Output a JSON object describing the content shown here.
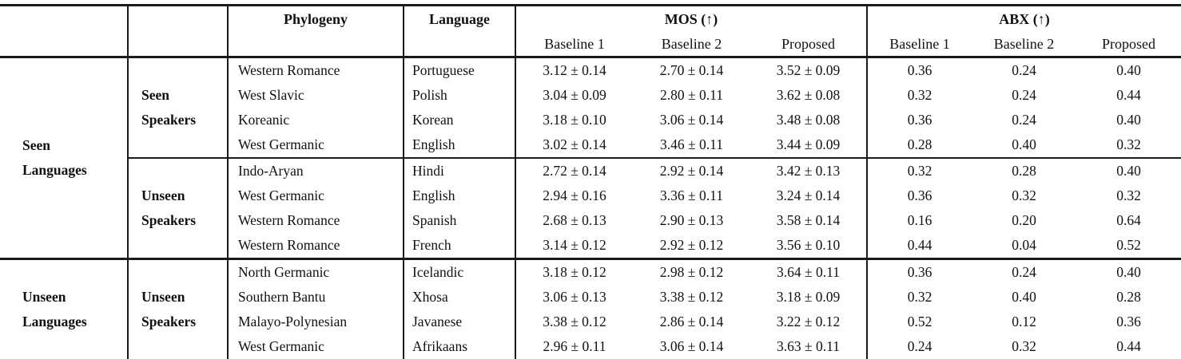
{
  "table": {
    "colors": {
      "rule": "#1a1a1a",
      "text": "#111111",
      "background": "#ffffff"
    },
    "header": {
      "phylogeny": "Phylogeny",
      "language": "Language",
      "mos_group": "MOS (↑)",
      "abx_group": "ABX (↑)",
      "mos_sub": [
        "Baseline 1",
        "Baseline 2",
        "Proposed"
      ],
      "abx_sub": [
        "Baseline 1",
        "Baseline 2",
        "Proposed"
      ]
    },
    "groups": [
      {
        "label_lines": [
          "Seen",
          "Languages"
        ],
        "speaker_groups": [
          {
            "label_lines": [
              "Seen",
              "Speakers"
            ],
            "rows": [
              {
                "phylogeny": "Western Romance",
                "language": "Portuguese",
                "mos": [
                  "3.12 ± 0.14",
                  "2.70 ± 0.14",
                  "3.52 ± 0.09"
                ],
                "abx": [
                  "0.36",
                  "0.24",
                  "0.40"
                ]
              },
              {
                "phylogeny": "West Slavic",
                "language": "Polish",
                "mos": [
                  "3.04 ± 0.09",
                  "2.80 ± 0.11",
                  "3.62 ± 0.08"
                ],
                "abx": [
                  "0.32",
                  "0.24",
                  "0.44"
                ]
              },
              {
                "phylogeny": "Koreanic",
                "language": "Korean",
                "mos": [
                  "3.18 ± 0.10",
                  "3.06 ± 0.14",
                  "3.48 ± 0.08"
                ],
                "abx": [
                  "0.36",
                  "0.24",
                  "0.40"
                ]
              },
              {
                "phylogeny": "West Germanic",
                "language": "English",
                "mos": [
                  "3.02 ± 0.14",
                  "3.46 ± 0.11",
                  "3.44 ± 0.09"
                ],
                "abx": [
                  "0.28",
                  "0.40",
                  "0.32"
                ]
              }
            ]
          },
          {
            "label_lines": [
              "Unseen",
              "Speakers"
            ],
            "rows": [
              {
                "phylogeny": "Indo-Aryan",
                "language": "Hindi",
                "mos": [
                  "2.72 ± 0.14",
                  "2.92 ± 0.14",
                  "3.42 ± 0.13"
                ],
                "abx": [
                  "0.32",
                  "0.28",
                  "0.40"
                ]
              },
              {
                "phylogeny": "West Germanic",
                "language": "English",
                "mos": [
                  "2.94 ± 0.16",
                  "3.36 ± 0.11",
                  "3.24 ± 0.14"
                ],
                "abx": [
                  "0.36",
                  "0.32",
                  "0.32"
                ]
              },
              {
                "phylogeny": "Western Romance",
                "language": "Spanish",
                "mos": [
                  "2.68 ± 0.13",
                  "2.90 ± 0.13",
                  "3.58 ± 0.14"
                ],
                "abx": [
                  "0.16",
                  "0.20",
                  "0.64"
                ]
              },
              {
                "phylogeny": "Western Romance",
                "language": "French",
                "mos": [
                  "3.14 ± 0.12",
                  "2.92 ± 0.12",
                  "3.56 ± 0.10"
                ],
                "abx": [
                  "0.44",
                  "0.04",
                  "0.52"
                ]
              }
            ]
          }
        ]
      },
      {
        "label_lines": [
          "Unseen",
          "Languages"
        ],
        "speaker_groups": [
          {
            "label_lines": [
              "Unseen",
              "Speakers"
            ],
            "rows": [
              {
                "phylogeny": "North Germanic",
                "language": "Icelandic",
                "mos": [
                  "3.18 ± 0.12",
                  "2.98 ± 0.12",
                  "3.64 ± 0.11"
                ],
                "abx": [
                  "0.36",
                  "0.24",
                  "0.40"
                ]
              },
              {
                "phylogeny": "Southern Bantu",
                "language": "Xhosa",
                "mos": [
                  "3.06 ± 0.13",
                  "3.38 ± 0.12",
                  "3.18 ± 0.09"
                ],
                "abx": [
                  "0.32",
                  "0.40",
                  "0.28"
                ]
              },
              {
                "phylogeny": "Malayo-Polynesian",
                "language": "Javanese",
                "mos": [
                  "3.38 ± 0.12",
                  "2.86 ± 0.14",
                  "3.22 ± 0.12"
                ],
                "abx": [
                  "0.52",
                  "0.12",
                  "0.36"
                ]
              },
              {
                "phylogeny": "West Germanic",
                "language": "Afrikaans",
                "mos": [
                  "2.96 ± 0.11",
                  "3.06 ± 0.14",
                  "3.63 ± 0.11"
                ],
                "abx": [
                  "0.24",
                  "0.32",
                  "0.44"
                ]
              }
            ]
          }
        ]
      }
    ]
  }
}
